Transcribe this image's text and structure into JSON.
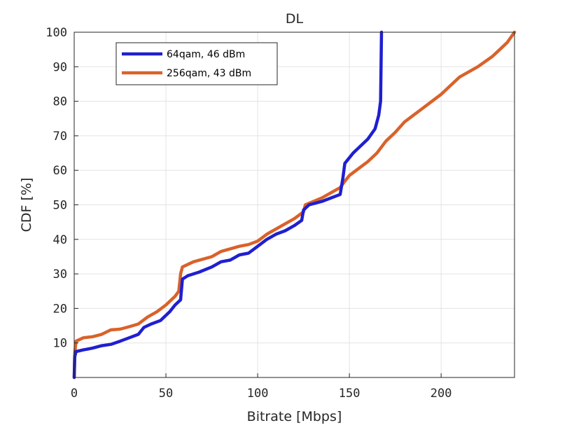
{
  "chart_data": {
    "type": "line",
    "title": "DL",
    "xlabel": "Bitrate [Mbps]",
    "ylabel": "CDF [%]",
    "xlim": [
      0,
      240
    ],
    "ylim": [
      0,
      100
    ],
    "xticks": [
      0,
      50,
      100,
      150,
      200
    ],
    "yticks": [
      10,
      20,
      30,
      40,
      50,
      60,
      70,
      80,
      90,
      100
    ],
    "grid": true,
    "legend_position": "top-left",
    "series": [
      {
        "name": "64qam, 46 dBm",
        "color": "#1f1fd0",
        "points": [
          [
            0,
            0
          ],
          [
            0.3,
            6
          ],
          [
            1,
            7.5
          ],
          [
            5,
            8
          ],
          [
            10,
            8.5
          ],
          [
            15,
            9.2
          ],
          [
            20,
            9.6
          ],
          [
            25,
            10.5
          ],
          [
            30,
            11.5
          ],
          [
            35,
            12.5
          ],
          [
            38,
            14.5
          ],
          [
            42,
            15.5
          ],
          [
            47,
            16.5
          ],
          [
            52,
            19
          ],
          [
            55,
            21
          ],
          [
            58,
            22.5
          ],
          [
            59,
            28.5
          ],
          [
            62,
            29.5
          ],
          [
            68,
            30.5
          ],
          [
            75,
            32
          ],
          [
            80,
            33.5
          ],
          [
            85,
            34
          ],
          [
            90,
            35.5
          ],
          [
            95,
            36
          ],
          [
            100,
            38
          ],
          [
            105,
            40
          ],
          [
            110,
            41.5
          ],
          [
            115,
            42.5
          ],
          [
            120,
            44
          ],
          [
            124,
            45.5
          ],
          [
            125,
            48.5
          ],
          [
            128,
            50
          ],
          [
            135,
            51
          ],
          [
            140,
            52
          ],
          [
            145,
            53
          ],
          [
            146.5,
            58
          ],
          [
            147.5,
            62
          ],
          [
            152,
            65
          ],
          [
            160,
            69
          ],
          [
            164,
            72
          ],
          [
            166,
            76
          ],
          [
            167,
            80
          ],
          [
            167.5,
            100
          ]
        ]
      },
      {
        "name": "256qam, 43 dBm",
        "color": "#d9622b",
        "points": [
          [
            0,
            0
          ],
          [
            0.3,
            7
          ],
          [
            1,
            10.5
          ],
          [
            5,
            11.5
          ],
          [
            10,
            11.8
          ],
          [
            15,
            12.5
          ],
          [
            20,
            13.8
          ],
          [
            25,
            14
          ],
          [
            30,
            14.7
          ],
          [
            35,
            15.5
          ],
          [
            40,
            17.5
          ],
          [
            45,
            19
          ],
          [
            50,
            21
          ],
          [
            55,
            23.5
          ],
          [
            57,
            25
          ],
          [
            58,
            30
          ],
          [
            59,
            32
          ],
          [
            65,
            33.5
          ],
          [
            75,
            35
          ],
          [
            80,
            36.5
          ],
          [
            90,
            38
          ],
          [
            95,
            38.5
          ],
          [
            100,
            39.5
          ],
          [
            105,
            41.5
          ],
          [
            110,
            43
          ],
          [
            115,
            44.5
          ],
          [
            120,
            46
          ],
          [
            125,
            48
          ],
          [
            126,
            50
          ],
          [
            135,
            52
          ],
          [
            140,
            53.5
          ],
          [
            145,
            55
          ],
          [
            147,
            56.5
          ],
          [
            150,
            58.5
          ],
          [
            155,
            60.5
          ],
          [
            160,
            62.5
          ],
          [
            165,
            65
          ],
          [
            170,
            68.5
          ],
          [
            175,
            71
          ],
          [
            180,
            74
          ],
          [
            185,
            76
          ],
          [
            190,
            78
          ],
          [
            195,
            80
          ],
          [
            200,
            82
          ],
          [
            205,
            84.5
          ],
          [
            210,
            87
          ],
          [
            220,
            90
          ],
          [
            228,
            93
          ],
          [
            232,
            95
          ],
          [
            236,
            97
          ],
          [
            240,
            100
          ]
        ]
      }
    ]
  }
}
